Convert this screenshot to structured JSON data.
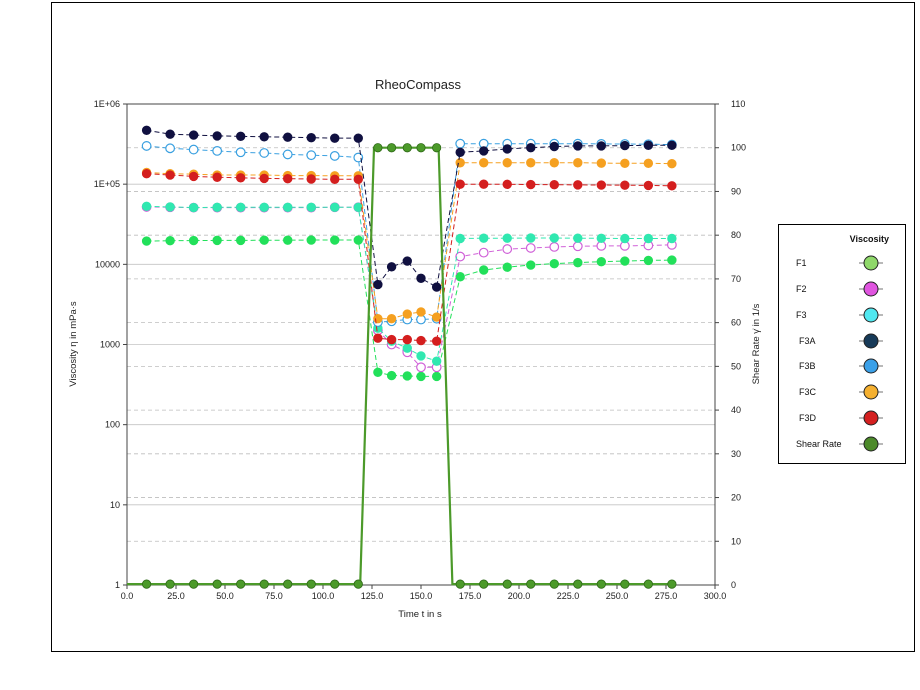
{
  "chart_data": {
    "type": "line",
    "title": "RheoCompass",
    "xlabel": "Time  t  in s",
    "ylabel": "Viscosity  η  in mPa·s",
    "y2label": "Shear Rate  γ̇  in 1/s",
    "xlim": [
      0,
      300
    ],
    "ylim": [
      1,
      1000000
    ],
    "yscale": "log",
    "y2lim": [
      0,
      110
    ],
    "x_ticks": [
      "0.0",
      "25.0",
      "50.0",
      "75.0",
      "100.0",
      "125.0",
      "150.0",
      "175.0",
      "200.0",
      "225.0",
      "250.0",
      "275.0",
      "300.0"
    ],
    "y_ticks": [
      "1",
      "10",
      "100",
      "1000",
      "10000",
      "1E+05",
      "1E+06"
    ],
    "y2_ticks": [
      "0",
      "10",
      "20",
      "30",
      "40",
      "50",
      "60",
      "70",
      "80",
      "90",
      "100",
      "110"
    ],
    "grid": true,
    "legend_title": "Viscosity",
    "legend_position": "right",
    "series": [
      {
        "name": "F1",
        "color": "#22e05a",
        "filled": true,
        "axis": "left",
        "x": [
          10,
          22,
          34,
          46,
          58,
          70,
          82,
          94,
          106,
          118,
          128,
          135,
          143,
          150,
          158,
          170,
          182,
          194,
          206,
          218,
          230,
          242,
          254,
          266,
          278
        ],
        "y": [
          19500,
          19700,
          19800,
          19900,
          19900,
          20000,
          20000,
          20100,
          20100,
          20100,
          450,
          410,
          405,
          400,
          400,
          7000,
          8500,
          9200,
          9800,
          10200,
          10500,
          10800,
          11000,
          11200,
          11300
        ]
      },
      {
        "name": "F2",
        "color": "#d060d8",
        "filled": false,
        "axis": "left",
        "x": [
          10,
          22,
          34,
          46,
          58,
          70,
          82,
          94,
          106,
          118,
          128,
          135,
          143,
          150,
          158,
          170,
          182,
          194,
          206,
          218,
          230,
          242,
          254,
          266,
          278
        ],
        "y": [
          52000,
          51500,
          51000,
          51000,
          51000,
          51000,
          51000,
          51000,
          51500,
          51500,
          1500,
          1000,
          800,
          520,
          520,
          12500,
          14000,
          15500,
          16000,
          16500,
          16800,
          17000,
          17000,
          17200,
          17500
        ]
      },
      {
        "name": "F3",
        "color": "#30e8b0",
        "filled": true,
        "axis": "left",
        "x": [
          10,
          22,
          34,
          46,
          58,
          70,
          82,
          94,
          106,
          118,
          128,
          135,
          143,
          150,
          158,
          170,
          182,
          194,
          206,
          218,
          230,
          242,
          254,
          266,
          278
        ],
        "y": [
          53000,
          52000,
          51000,
          51500,
          51500,
          51500,
          51500,
          51500,
          51500,
          51500,
          1600,
          1100,
          900,
          720,
          620,
          21000,
          21200,
          21200,
          21300,
          21300,
          21200,
          21100,
          21000,
          21000,
          21000
        ]
      },
      {
        "name": "F3A",
        "color": "#101040",
        "filled": true,
        "axis": "left",
        "x": [
          10,
          22,
          34,
          46,
          58,
          70,
          82,
          94,
          106,
          118,
          128,
          135,
          143,
          150,
          158,
          170,
          182,
          194,
          206,
          218,
          230,
          242,
          254,
          266,
          278
        ],
        "y": [
          470000,
          420000,
          410000,
          400000,
          395000,
          390000,
          385000,
          380000,
          375000,
          375000,
          5600,
          9300,
          11000,
          6700,
          5200,
          250000,
          260000,
          275000,
          285000,
          295000,
          300000,
          300000,
          303000,
          305000,
          305000
        ]
      },
      {
        "name": "F3B",
        "color": "#3aa0e0",
        "filled": false,
        "axis": "left",
        "x": [
          10,
          22,
          34,
          46,
          58,
          70,
          82,
          94,
          106,
          118,
          128,
          135,
          143,
          150,
          158,
          170,
          182,
          194,
          206,
          218,
          230,
          242,
          254,
          266,
          278
        ],
        "y": [
          300000,
          280000,
          270000,
          260000,
          250000,
          245000,
          235000,
          230000,
          225000,
          215000,
          1900,
          1950,
          2050,
          2050,
          2100,
          320000,
          320000,
          320000,
          320000,
          320000,
          320000,
          318000,
          317000,
          315000,
          312000
        ]
      },
      {
        "name": "F3C",
        "color": "#f5a020",
        "filled": true,
        "axis": "left",
        "x": [
          10,
          22,
          34,
          46,
          58,
          70,
          82,
          94,
          106,
          118,
          128,
          135,
          143,
          150,
          158,
          170,
          182,
          194,
          206,
          218,
          230,
          242,
          254,
          266,
          278
        ],
        "y": [
          140000,
          135000,
          133000,
          130000,
          130000,
          130000,
          128000,
          128000,
          127000,
          127000,
          2100,
          2100,
          2400,
          2550,
          2200,
          185000,
          185000,
          185000,
          185000,
          185000,
          185000,
          183000,
          182000,
          182000,
          180000
        ]
      },
      {
        "name": "F3D",
        "color": "#d41e1e",
        "filled": true,
        "axis": "left",
        "x": [
          10,
          22,
          34,
          46,
          58,
          70,
          82,
          94,
          106,
          118,
          128,
          135,
          143,
          150,
          158,
          170,
          182,
          194,
          206,
          218,
          230,
          242,
          254,
          266,
          278
        ],
        "y": [
          135000,
          130000,
          125000,
          122000,
          120000,
          118000,
          117000,
          116000,
          115000,
          115000,
          1200,
          1150,
          1150,
          1120,
          1100,
          100000,
          100000,
          99500,
          99000,
          98500,
          98000,
          97500,
          97000,
          96500,
          95500
        ]
      },
      {
        "name": "Shear Rate",
        "color": "#4c9a2a",
        "filled": true,
        "axis": "right",
        "x": [
          0,
          10,
          22,
          34,
          46,
          58,
          70,
          82,
          94,
          106,
          118,
          119,
          126,
          128,
          135,
          143,
          150,
          158,
          159,
          166,
          170,
          182,
          194,
          206,
          218,
          230,
          242,
          254,
          266,
          278
        ],
        "y": [
          0.2,
          0.2,
          0.2,
          0.2,
          0.2,
          0.2,
          0.2,
          0.2,
          0.2,
          0.2,
          0.2,
          0.2,
          100,
          100,
          100,
          100,
          100,
          100,
          100,
          0.2,
          0.2,
          0.2,
          0.2,
          0.2,
          0.2,
          0.2,
          0.2,
          0.2,
          0.2,
          0.2
        ]
      }
    ]
  }
}
